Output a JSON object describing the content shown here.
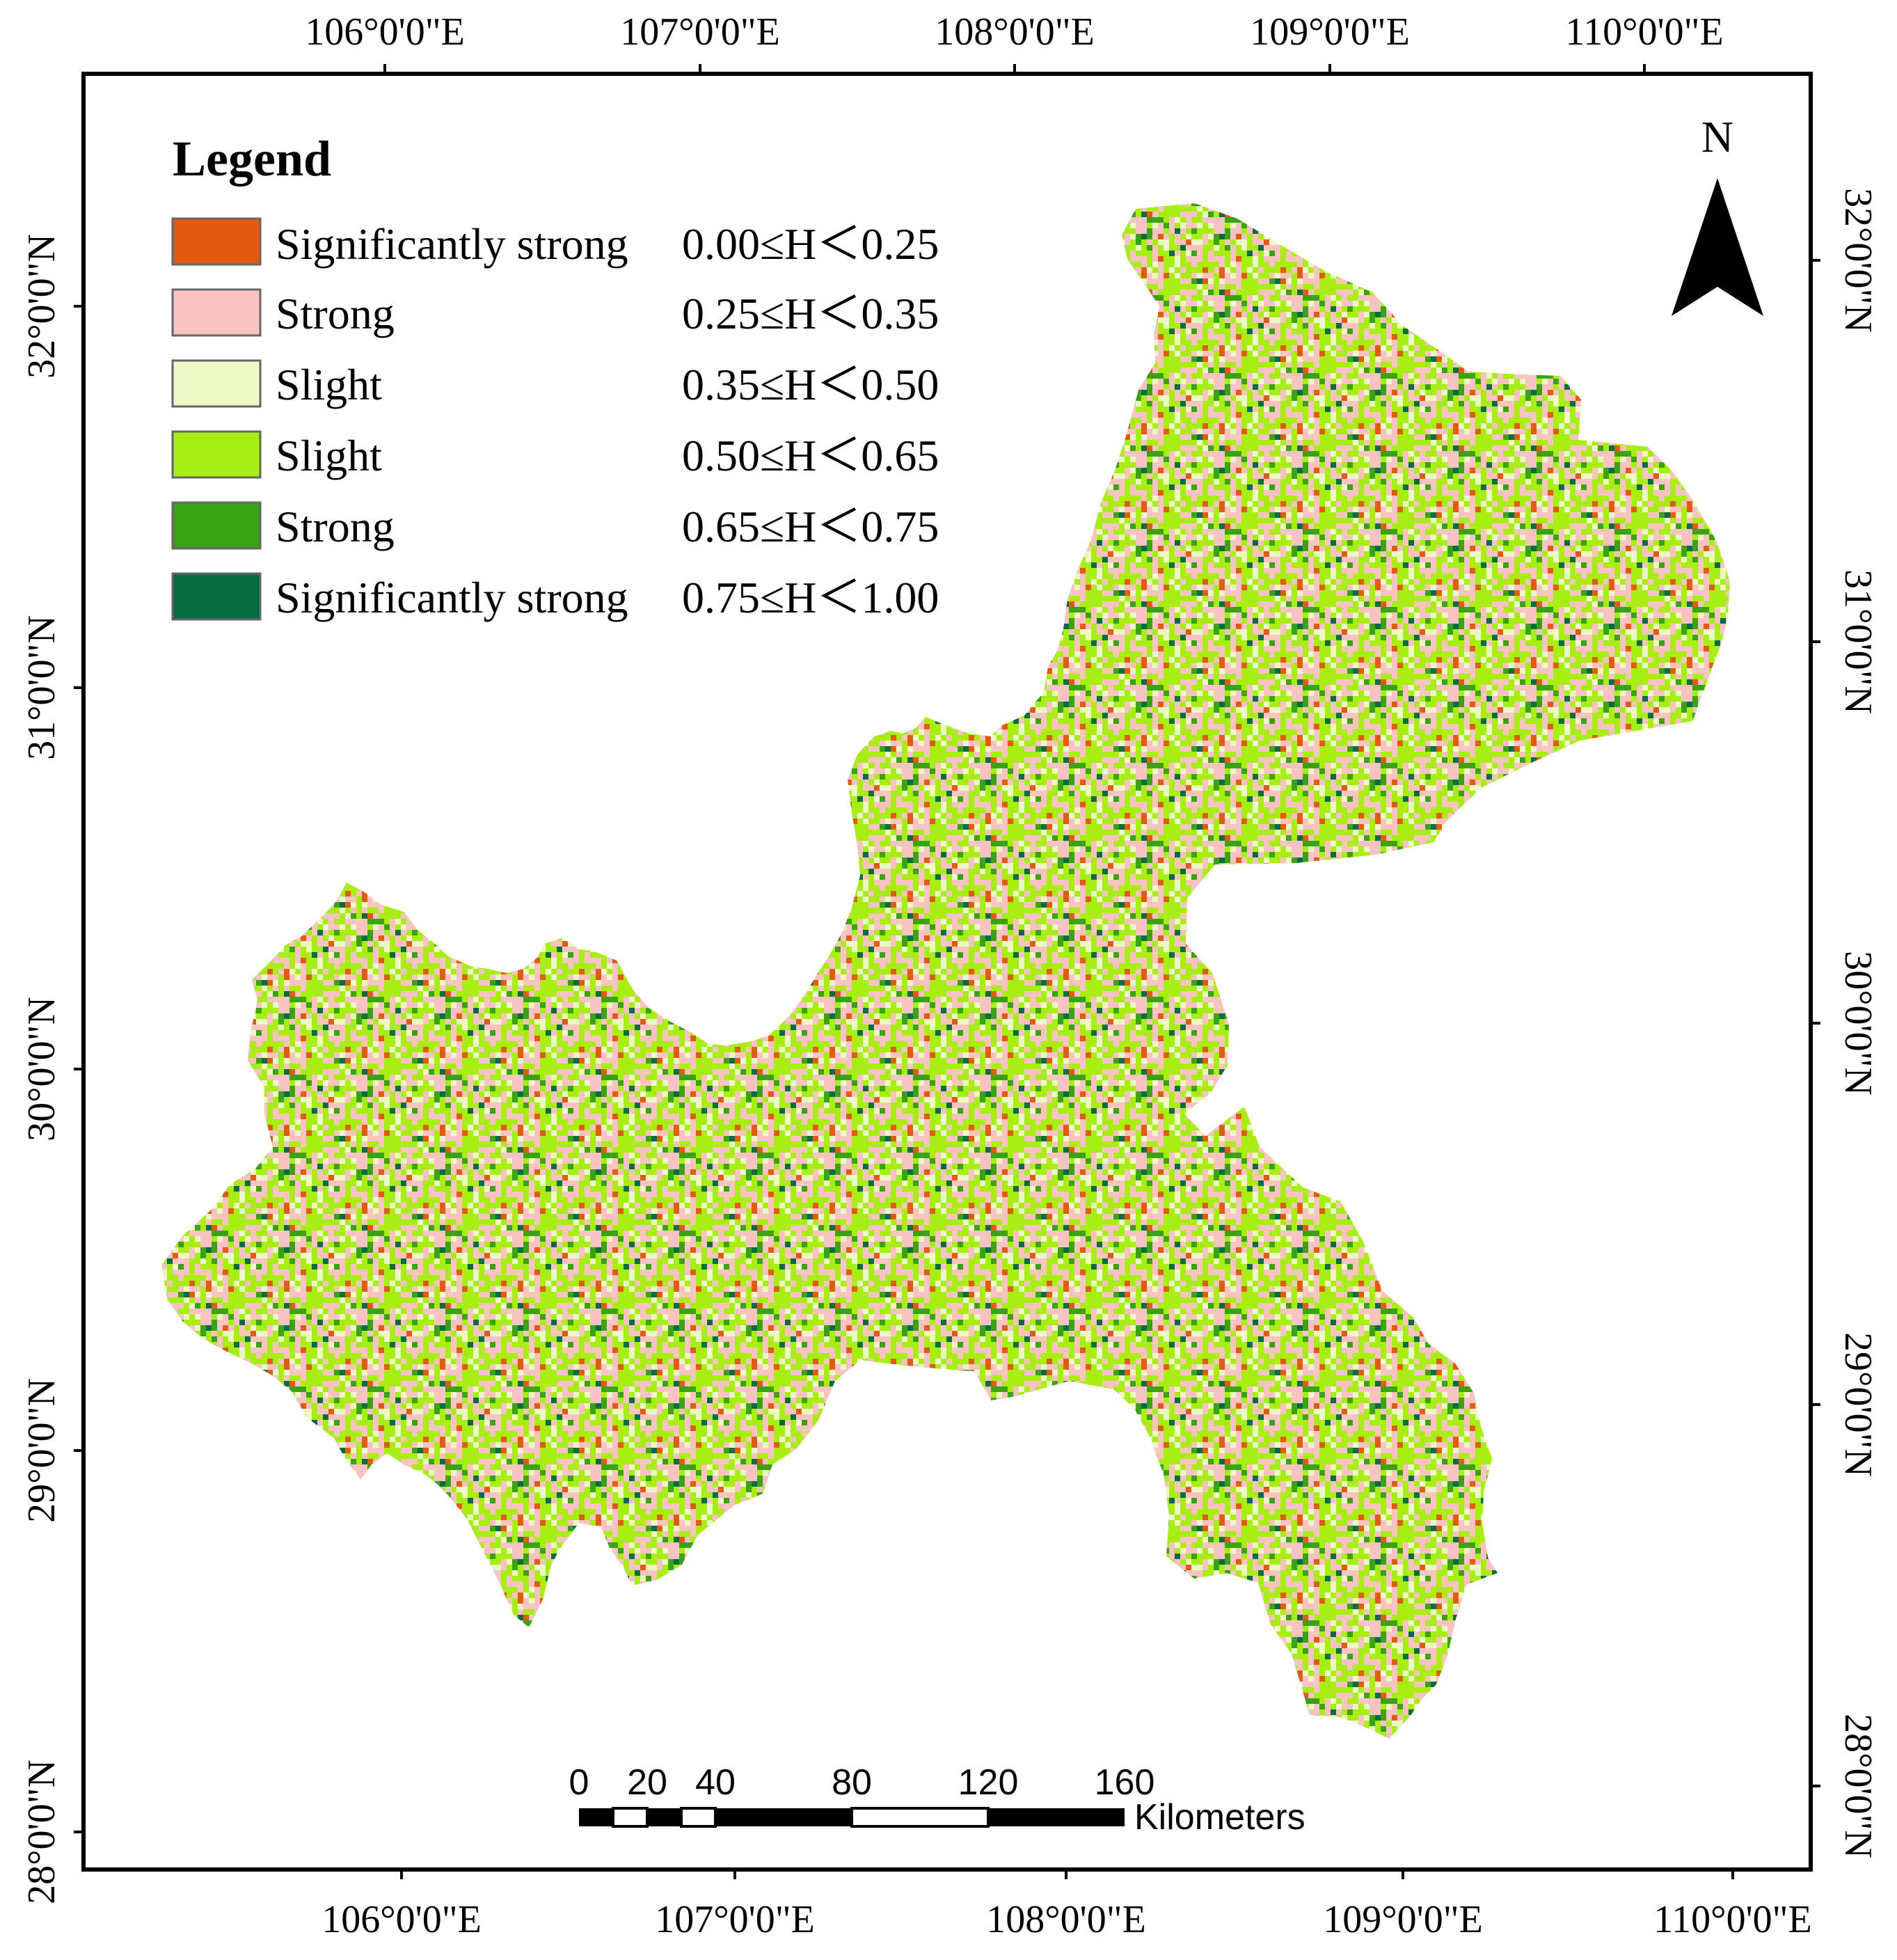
{
  "colors": {
    "significantly_strong_low": "#e35a12",
    "strong_low": "#f9c3c3",
    "slight_low": "#ecf8c6",
    "slight_high": "#a8ee14",
    "strong_high": "#3aa315",
    "significantly_strong_high": "#076b43"
  },
  "graticule": {
    "top_labels": [
      "106°0'0\"E",
      "107°0'0\"E",
      "108°0'0\"E",
      "109°0'0\"E",
      "110°0'0\"E"
    ],
    "bottom_labels": [
      "106°0'0\"E",
      "107°0'0\"E",
      "108°0'0\"E",
      "109°0'0\"E",
      "110°0'0\"E"
    ],
    "left_labels": [
      "32°0'0\"N",
      "31°0'0\"N",
      "30°0'0\"N",
      "29°0'0\"N",
      "28°0'0\"N"
    ],
    "right_labels": [
      "32°0'0\"N",
      "31°0'0\"N",
      "30°0'0\"N",
      "29°0'0\"N",
      "28°0'0\"N"
    ]
  },
  "legend": {
    "title": "Legend",
    "items": [
      {
        "label": "Significantly strong",
        "range": "0.00≤H＜0.25",
        "color_key": "significantly_strong_low"
      },
      {
        "label": "Strong",
        "range": "0.25≤H＜0.35",
        "color_key": "strong_low"
      },
      {
        "label": "Slight",
        "range": "0.35≤H＜0.50",
        "color_key": "slight_low"
      },
      {
        "label": "Slight",
        "range": "0.50≤H＜0.65",
        "color_key": "slight_high"
      },
      {
        "label": "Strong",
        "range": "0.65≤H＜0.75",
        "color_key": "strong_high"
      },
      {
        "label": "Significantly strong",
        "range": "0.75≤H＜1.00",
        "color_key": "significantly_strong_high"
      }
    ]
  },
  "north_arrow": {
    "label": "N"
  },
  "scale_bar": {
    "ticks": [
      "0",
      "20",
      "40",
      "80",
      "120",
      "160"
    ],
    "unit": "Kilometers"
  }
}
